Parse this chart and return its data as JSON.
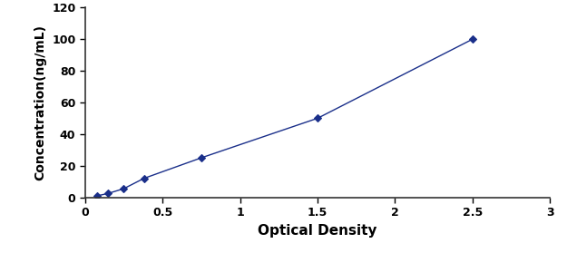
{
  "x": [
    0.08,
    0.15,
    0.25,
    0.38,
    0.75,
    1.5,
    2.5
  ],
  "y": [
    1.0,
    2.5,
    5.5,
    12.0,
    25.0,
    50.0,
    100.0
  ],
  "line_color": "#1a2f8a",
  "marker": "D",
  "marker_size": 4,
  "line_style": "-",
  "line_width": 1.0,
  "xlabel": "Optical Density",
  "ylabel": "Concentration(ng/mL)",
  "xlim": [
    0,
    3
  ],
  "ylim": [
    0,
    120
  ],
  "xticks": [
    0,
    0.5,
    1,
    1.5,
    2,
    2.5,
    3
  ],
  "yticks": [
    0,
    20,
    40,
    60,
    80,
    100,
    120
  ],
  "xlabel_fontsize": 11,
  "ylabel_fontsize": 10,
  "tick_fontsize": 9,
  "xlabel_fontweight": "bold",
  "ylabel_fontweight": "bold",
  "background_color": "#ffffff"
}
